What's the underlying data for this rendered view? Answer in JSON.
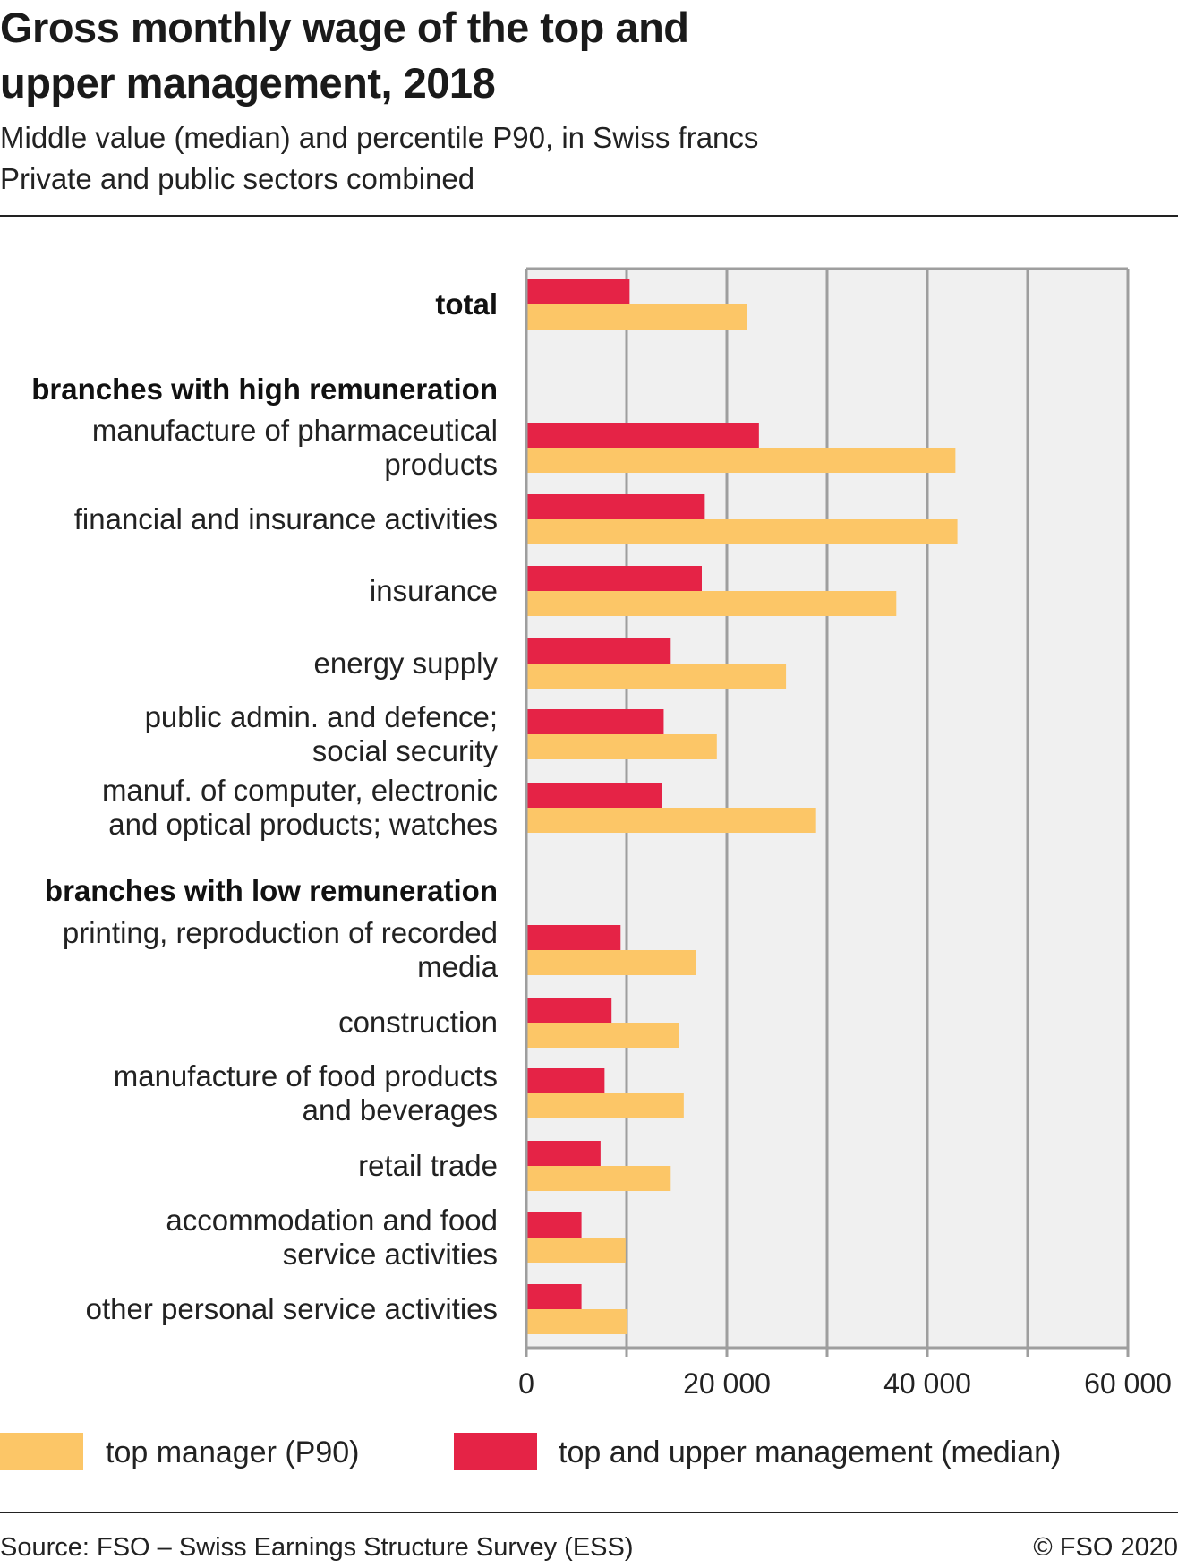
{
  "header": {
    "title_line1": "Gross monthly wage of the top and",
    "title_line2": "upper management, 2018",
    "subtitle1": "Middle value (median) and percentile P90, in Swiss francs",
    "subtitle2": "Private and public sectors combined"
  },
  "footer": {
    "source": "Source: FSO – Swiss Earnings Structure Survey (ESS)",
    "copyright": "© FSO 2020"
  },
  "colors": {
    "median": "#e52346",
    "p90": "#fcc667",
    "plot_bg": "#f0f0f0",
    "grid": "#9e9e9e"
  },
  "chart_data": {
    "type": "bar",
    "orientation": "horizontal",
    "title": "Gross monthly wage of the top and upper management, 2018",
    "subtitle": "Middle value (median) and percentile P90, in Swiss francs; Private and public sectors combined",
    "xlabel": "",
    "ylabel": "",
    "xlim": [
      0,
      60000
    ],
    "xticks": [
      0,
      20000,
      40000,
      60000
    ],
    "xtick_labels": [
      "0",
      "20 000",
      "40 000",
      "60 000"
    ],
    "grid": true,
    "grid_step": 10000,
    "legend": {
      "placement": "bottom",
      "entries": [
        "top manager (P90)",
        "top and upper management (median)"
      ]
    },
    "rows": [
      {
        "label": [
          "total"
        ],
        "bold": true,
        "median": 10300,
        "p90": 22000
      },
      {
        "label": [
          "branches with high remuneration"
        ],
        "bold": true,
        "heading": true
      },
      {
        "label": [
          "manufacture of pharmaceutical",
          "products"
        ],
        "median": 23200,
        "p90": 42800
      },
      {
        "label": [
          "financial and insurance activities"
        ],
        "median": 17800,
        "p90": 43000
      },
      {
        "label": [
          "insurance"
        ],
        "median": 17500,
        "p90": 36900
      },
      {
        "label": [
          "energy supply"
        ],
        "median": 14400,
        "p90": 25900
      },
      {
        "label": [
          "public admin. and defence;",
          "social security"
        ],
        "median": 13700,
        "p90": 19000
      },
      {
        "label": [
          "manuf. of computer, electronic",
          "and optical products; watches"
        ],
        "median": 13500,
        "p90": 28900
      },
      {
        "label": [
          "branches with low remuneration"
        ],
        "bold": true,
        "heading": true
      },
      {
        "label": [
          "printing, reproduction of recorded",
          "media"
        ],
        "median": 9400,
        "p90": 16900
      },
      {
        "label": [
          "construction"
        ],
        "median": 8500,
        "p90": 15200
      },
      {
        "label": [
          "manufacture of food products",
          "and beverages"
        ],
        "median": 7800,
        "p90": 15700
      },
      {
        "label": [
          "retail trade"
        ],
        "median": 7400,
        "p90": 14400
      },
      {
        "label": [
          "accommodation and food",
          "service activities"
        ],
        "median": 5500,
        "p90": 9900
      },
      {
        "label": [
          "other personal service activities"
        ],
        "median": 5500,
        "p90": 10100
      }
    ],
    "series": [
      {
        "name": "top and upper management (median)",
        "key": "median"
      },
      {
        "name": "top manager (P90)",
        "key": "p90"
      }
    ]
  }
}
